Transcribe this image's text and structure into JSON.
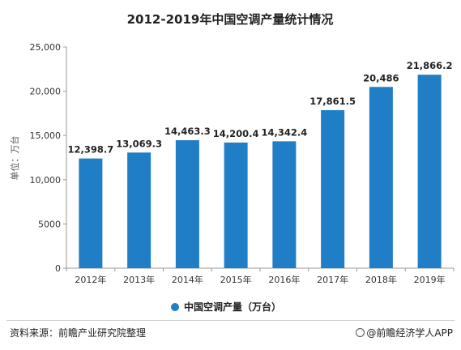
{
  "chart_data": {
    "type": "bar",
    "title": "2012-2019年中国空调产量统计情况",
    "ylabel": "单位：万台",
    "xlabel": "",
    "categories": [
      "2012年",
      "2013年",
      "2014年",
      "2015年",
      "2016年",
      "2017年",
      "2018年",
      "2019年"
    ],
    "series": [
      {
        "name": "中国空调产量（万台）",
        "values": [
          12398.7,
          13069.3,
          14463.3,
          14200.4,
          14342.4,
          17861.5,
          20486,
          21866.2
        ],
        "labels": [
          "12,398.7",
          "13,069.3",
          "14,463.3",
          "14,200.4",
          "14,342.4",
          "17,861.5",
          "20,486",
          "21,866.2"
        ],
        "color": "#1f7ec6"
      }
    ],
    "ylim": [
      0,
      25000
    ],
    "yticks": [
      0,
      5000,
      10000,
      15000,
      20000,
      25000
    ],
    "ytick_labels": [
      "0",
      "5000",
      "10,000",
      "15,000",
      "20,000",
      "25,000"
    ],
    "grid": false,
    "legend_position": "bottom"
  },
  "footer": {
    "source": "资料来源：前瞻产业研究院整理",
    "brand": "@前瞻经济学人APP"
  }
}
